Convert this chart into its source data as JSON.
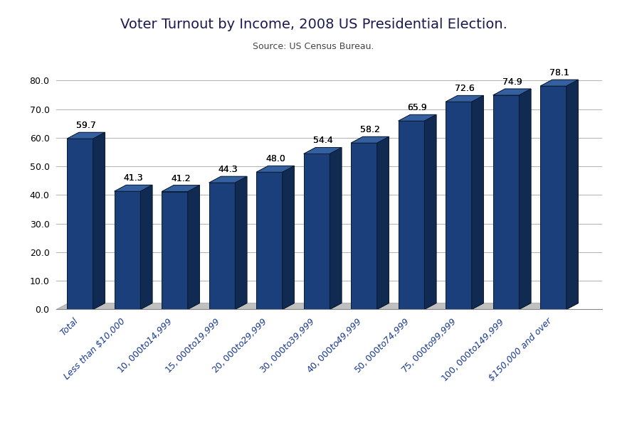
{
  "title": "Voter Turnout by Income, 2008 US Presidential Election.",
  "subtitle": "Source: US Census Bureau.",
  "categories": [
    "Total",
    "Less than $10,000",
    "$10,000 to $14,999",
    "$15,000 to $19,999",
    "$20,000 to $29,999",
    "$30,000 to $39,999",
    "$40,000 to $49,999",
    "$50,000 to $74,999",
    "$75,000 to $99,999",
    "$100,000 to $149,999",
    "$150,000 and over"
  ],
  "values": [
    59.7,
    41.3,
    41.2,
    44.3,
    48.0,
    54.4,
    58.2,
    65.9,
    72.6,
    74.9,
    78.1
  ],
  "bar_color_front": "#1b3f7a",
  "bar_color_top": "#3560a0",
  "bar_color_side": "#102a52",
  "floor_color": "#c0c0c0",
  "ylim": [
    0,
    85
  ],
  "yticks": [
    0.0,
    10.0,
    20.0,
    30.0,
    40.0,
    50.0,
    60.0,
    70.0,
    80.0
  ],
  "title_fontsize": 14,
  "subtitle_fontsize": 9,
  "tick_label_fontsize": 9,
  "value_label_fontsize": 9,
  "background_color": "#ffffff",
  "plot_bg_color": "#ffffff",
  "grid_color": "#b0b0b0",
  "label_color": "#1a3a8c"
}
